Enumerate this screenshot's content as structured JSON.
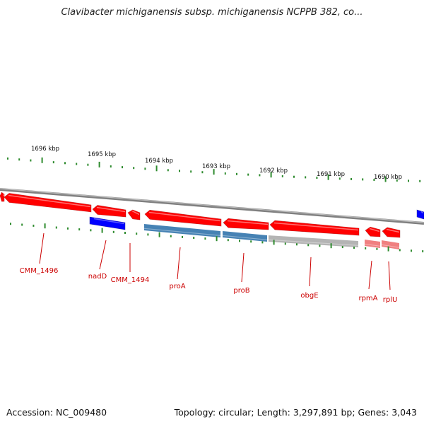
{
  "title": "Clavibacter michiganensis subsp. michiganensis NCPPB 382, co...",
  "footer": {
    "accession": "Accession: NC_009480",
    "summary": "Topology: circular; Length: 3,297,891 bp; Genes: 3,043"
  },
  "ruler": {
    "labels": [
      "1696 kbp",
      "1695 kbp",
      "1694 kbp",
      "1693 kbp",
      "1692 kbp",
      "1691 kbp",
      "1690 kbp"
    ]
  },
  "genes": [
    {
      "name": "",
      "color": "#ff0000",
      "strand": "reverse",
      "labeled": false
    },
    {
      "name": "CMM_1496",
      "color": "#ff0000",
      "strand": "reverse",
      "labeled": true
    },
    {
      "name": "",
      "color": "#ff0000",
      "strand": "reverse",
      "labeled": false
    },
    {
      "name": "",
      "color": "#ff0000",
      "strand": "reverse",
      "labeled": false
    },
    {
      "name": "nadD",
      "color": "#0000ff",
      "strand": "block",
      "labeled": true
    },
    {
      "name": "CMM_1494",
      "color": "#ff0000",
      "strand": "reverse",
      "labeled": true
    },
    {
      "name": "proA",
      "color": "#ff0000",
      "strand": "reverse",
      "labeled": true
    },
    {
      "name": "proB",
      "color": "#ff0000",
      "strand": "reverse",
      "labeled": true
    },
    {
      "name": "obgE",
      "color": "#ff0000",
      "strand": "reverse",
      "labeled": true
    },
    {
      "name": "rpmA",
      "color": "#ff0000",
      "strand": "reverse",
      "labeled": true
    },
    {
      "name": "rplU",
      "color": "#ff0000",
      "strand": "reverse",
      "labeled": true
    },
    {
      "name": "",
      "color": "#0000ff",
      "strand": "block",
      "labeled": false
    }
  ],
  "features": [
    {
      "kind": "steelblue",
      "color": "#4682b4"
    },
    {
      "kind": "steelblue",
      "color": "#4682b4"
    },
    {
      "kind": "grey",
      "color": "#b4b4b4"
    },
    {
      "kind": "pink",
      "color": "#f08080"
    },
    {
      "kind": "pink",
      "color": "#f08080"
    }
  ],
  "colors": {
    "label_red": "#cc0000",
    "backbone": "#808080",
    "tick_green": "#2e8b2e"
  }
}
